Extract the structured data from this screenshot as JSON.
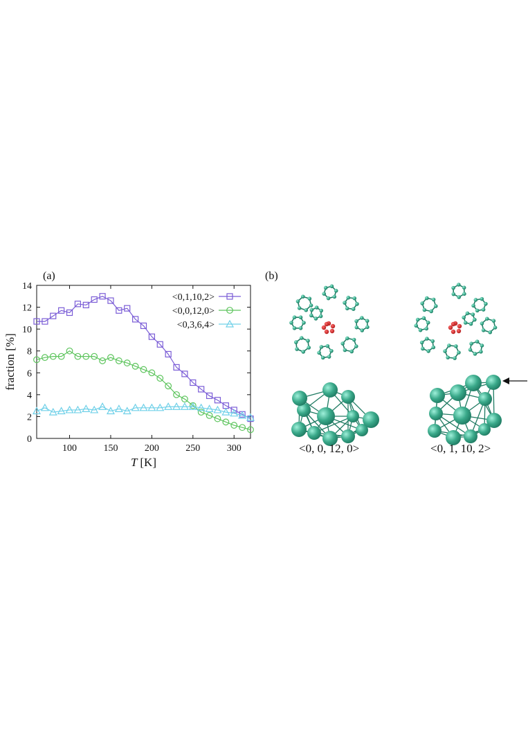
{
  "panel_a": {
    "label": "(a)"
  },
  "panel_b": {
    "label": "(b)",
    "captions": [
      "<0, 0, 12, 0>",
      "<0, 1, 10, 2>"
    ]
  },
  "colors": {
    "s1": "#7a5cd6",
    "s2": "#5cc45c",
    "s3": "#6fd0e8",
    "atom": "#3aa98a",
    "atom_dark": "#1f7a62",
    "center_atom": "#b01818"
  },
  "chart_data": {
    "type": "line",
    "title": "",
    "xlabel_italic": "T",
    "xlabel_unit": "[K]",
    "ylabel": "fraction [%]",
    "xlim": [
      60,
      320
    ],
    "ylim": [
      0,
      14
    ],
    "xticks": [
      100,
      150,
      200,
      250,
      300
    ],
    "yticks": [
      0,
      2,
      4,
      6,
      8,
      10,
      12,
      14
    ],
    "grid": false,
    "legend_position": "top-right",
    "x": [
      60,
      70,
      80,
      90,
      100,
      110,
      120,
      130,
      140,
      150,
      160,
      170,
      180,
      190,
      200,
      210,
      220,
      230,
      240,
      250,
      260,
      270,
      280,
      290,
      300,
      310,
      320
    ],
    "series": [
      {
        "name": "<0,1,10,2>",
        "marker": "square",
        "values": [
          10.7,
          10.7,
          11.2,
          11.7,
          11.5,
          12.3,
          12.2,
          12.7,
          13.0,
          12.6,
          11.7,
          11.9,
          10.9,
          10.3,
          9.3,
          8.6,
          7.7,
          6.5,
          5.9,
          5.1,
          4.5,
          3.9,
          3.5,
          3.0,
          2.6,
          2.2,
          1.8
        ]
      },
      {
        "name": "<0,0,12,0>",
        "marker": "circle",
        "values": [
          7.2,
          7.4,
          7.5,
          7.5,
          8.0,
          7.5,
          7.5,
          7.5,
          7.1,
          7.4,
          7.1,
          6.9,
          6.6,
          6.3,
          6.0,
          5.5,
          4.8,
          4.0,
          3.6,
          3.0,
          2.4,
          2.1,
          1.8,
          1.5,
          1.2,
          1.0,
          0.8
        ]
      },
      {
        "name": "<0,3,6,4>",
        "marker": "triangle",
        "values": [
          2.5,
          2.8,
          2.4,
          2.5,
          2.6,
          2.6,
          2.7,
          2.6,
          2.9,
          2.5,
          2.7,
          2.5,
          2.8,
          2.8,
          2.8,
          2.8,
          2.9,
          2.9,
          2.9,
          2.9,
          2.8,
          2.7,
          2.6,
          2.4,
          2.3,
          2.1,
          1.9
        ]
      }
    ]
  }
}
